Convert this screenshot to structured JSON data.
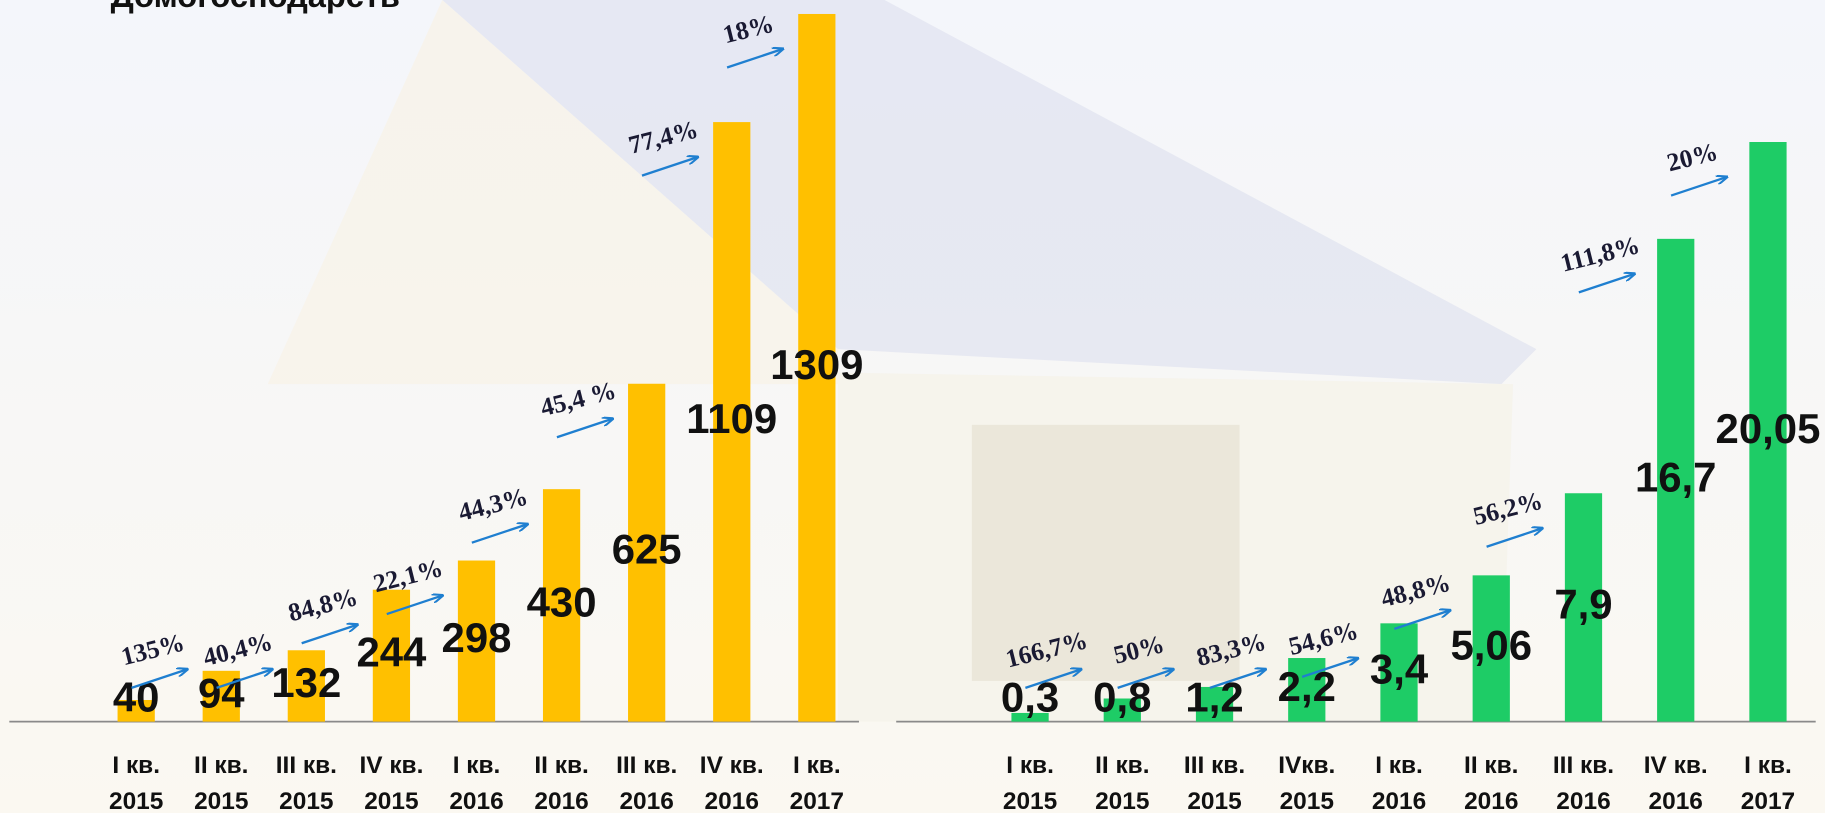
{
  "chart_data": [
    {
      "type": "bar",
      "title": "Домогосподарств",
      "color": "#FFC000",
      "categories": [
        [
          "I кв.",
          "2015"
        ],
        [
          "II кв.",
          "2015"
        ],
        [
          "III кв.",
          "2015"
        ],
        [
          "IV кв.",
          "2015"
        ],
        [
          "I кв.",
          "2016"
        ],
        [
          "II кв.",
          "2016"
        ],
        [
          "III кв.",
          "2016"
        ],
        [
          "IV кв.",
          "2016"
        ],
        [
          "I кв.",
          "2017"
        ]
      ],
      "values": [
        40,
        94,
        132,
        244,
        298,
        430,
        625,
        1109,
        1309
      ],
      "annotations": [
        "135%",
        "40,4%",
        "84,8%",
        "22,1%",
        "44,3%",
        "45,4 %",
        "77,4%",
        "18%"
      ],
      "ylim": [
        0,
        1309
      ]
    },
    {
      "type": "bar",
      "color": "#1ECC66",
      "categories": [
        [
          "I кв.",
          "2015"
        ],
        [
          "II кв.",
          "2015"
        ],
        [
          "III кв.",
          "2015"
        ],
        [
          "IVкв.",
          "2015"
        ],
        [
          "I кв.",
          "2016"
        ],
        [
          "II кв.",
          "2016"
        ],
        [
          "III кв.",
          "2016"
        ],
        [
          "IV кв.",
          "2016"
        ],
        [
          "I кв.",
          "2017"
        ]
      ],
      "values": [
        0.3,
        0.8,
        1.2,
        2.2,
        3.4,
        5.06,
        7.9,
        16.7,
        20.05
      ],
      "value_labels": [
        "0,3",
        "0,8",
        "1,2",
        "2,2",
        "3,4",
        "5,06",
        "7,9",
        "16,7",
        "20,05"
      ],
      "annotations": [
        "166,7%",
        "50%",
        "83,3%",
        "54,6%",
        "48,8%",
        "56,2%",
        "111,8%",
        "20%"
      ],
      "ylim": [
        0,
        20.05
      ]
    }
  ]
}
